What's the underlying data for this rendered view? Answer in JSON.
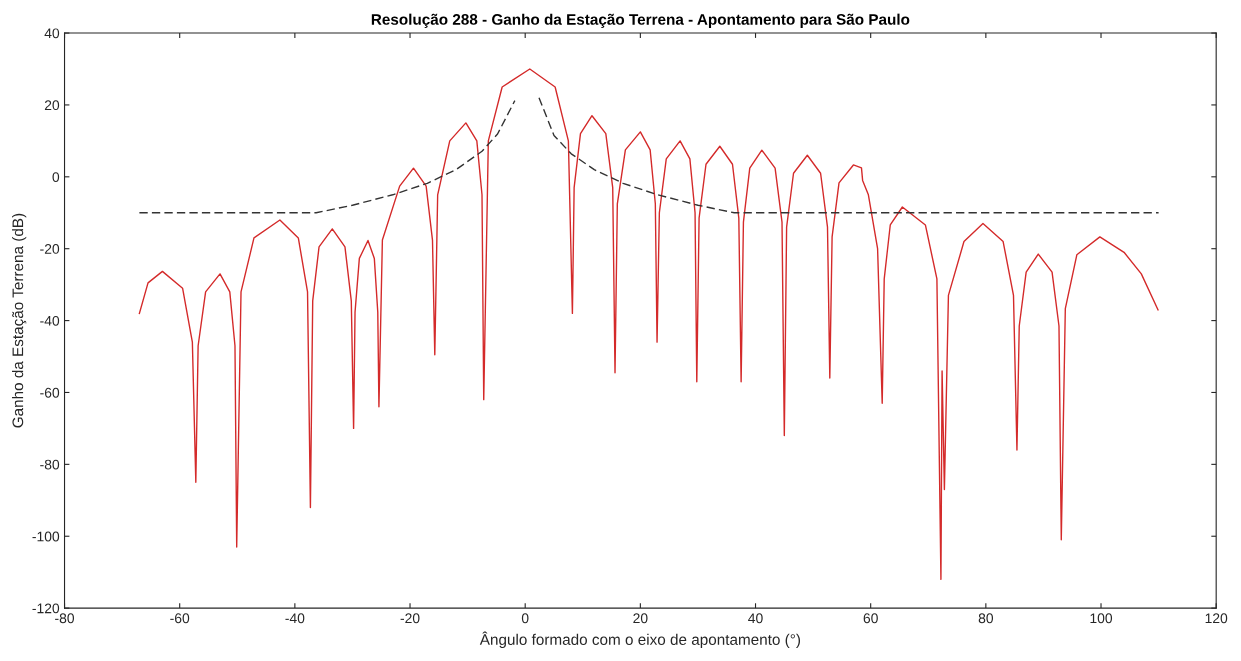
{
  "chart_data": {
    "type": "line",
    "title": "Resolução 288 - Ganho da Estação Terrena - Apontamento para São Paulo",
    "xlabel": "Ângulo formado com o eixo de apontamento (°)",
    "ylabel": "Ganho da Estação Terrena (dB)",
    "xlim": [
      -80,
      120
    ],
    "xticks": [
      -80,
      -60,
      -40,
      -20,
      0,
      20,
      40,
      60,
      80,
      100,
      120
    ],
    "ylim": [
      -120,
      40
    ],
    "yticks": [
      -120,
      -100,
      -80,
      -60,
      -40,
      -20,
      0,
      20,
      40
    ],
    "grid": false,
    "legend": false,
    "series": [
      {
        "color": "#d42a2a",
        "line_style": "solid",
        "x": [
          -67,
          -65.5,
          -63,
          -59.5,
          -57.8,
          -57.2,
          -56.8,
          -55.5,
          -53,
          -51.3,
          -50.4,
          -50.1,
          -49.35,
          -47.1,
          -42.6,
          -39.4,
          -37.8,
          -37.3,
          -36.9,
          -35.8,
          -33.5,
          -31.3,
          -30.2,
          -29.8,
          -29.55,
          -28.8,
          -27.3,
          -26.2,
          -25.6,
          -25.4,
          -24.8,
          -21.8,
          -19.4,
          -17.2,
          -16.1,
          -15.7,
          -15.2,
          -13.1,
          -10.3,
          -8.4,
          -7.5,
          -7.2,
          -6.4,
          -4,
          0.8,
          5.2,
          7.5,
          8.2,
          8.5,
          9.6,
          11.6,
          14,
          15.2,
          15.6,
          16.0,
          17.4,
          20,
          21.7,
          22.6,
          22.9,
          23.3,
          24.5,
          26.9,
          28.6,
          29.5,
          29.8,
          30.2,
          31.4,
          33.8,
          36,
          37.1,
          37.5,
          37.9,
          39.0,
          41.1,
          43.4,
          44.6,
          45,
          45.4,
          46.6,
          49,
          51.3,
          52.5,
          52.9,
          53.3,
          54.5,
          57,
          58.4,
          58.6,
          59.6,
          61.2,
          62,
          62.35,
          63.4,
          65.5,
          69.5,
          71.5,
          72.2,
          72.4,
          72.8,
          73.5,
          76.2,
          79.5,
          83.0,
          84.8,
          85.4,
          85.8,
          87.0,
          89.1,
          91.5,
          92.7,
          93.1,
          93.8,
          95.8,
          99.8,
          104,
          107,
          109.9
        ],
        "values": [
          -38,
          -29.5,
          -26.3,
          -31,
          -46,
          -85,
          -47,
          -32,
          -27,
          -32,
          -47,
          -103,
          -32,
          -17,
          -12,
          -17,
          -32,
          -92,
          -34.5,
          -19.5,
          -14.5,
          -19.5,
          -34.5,
          -70,
          -37.7,
          -22.7,
          -17.7,
          -22.7,
          -37.7,
          -64,
          -17.6,
          -2.6,
          2.4,
          -2.6,
          -17.6,
          -49.5,
          -5,
          10,
          15,
          10,
          -5,
          -62,
          10,
          25,
          30,
          25,
          10,
          -38,
          -3,
          12,
          17,
          12,
          -3,
          -54.5,
          -7.5,
          7.5,
          12.5,
          7.5,
          -7.5,
          -46,
          -10,
          5,
          10,
          5,
          -10,
          -57,
          -11.5,
          3.5,
          8.5,
          3.5,
          -11.5,
          -57,
          -12.6,
          2.4,
          7.4,
          2.4,
          -12.6,
          -72,
          -14,
          1,
          6,
          1,
          -14,
          -56,
          -16.7,
          -1.7,
          3.3,
          2.5,
          -1,
          -5,
          -20,
          -63,
          -28.4,
          -13.4,
          -8.4,
          -13.4,
          -28.4,
          -112,
          -54,
          -87,
          -33,
          -18,
          -13,
          -18,
          -33,
          -76,
          -41.5,
          -26.5,
          -21.5,
          -26.5,
          -41.5,
          -101,
          -36.7,
          -21.7,
          -16.7,
          -21,
          -27,
          -37
        ]
      },
      {
        "color": "#333333",
        "line_style": "dashed",
        "x": [
          -67,
          -36.3,
          -30,
          -23,
          -17,
          -12,
          -7.5,
          -4.8,
          -1.8,
          0,
          2.4,
          5,
          8,
          12,
          17,
          23,
          30,
          36.3,
          110
        ],
        "values": [
          -10,
          -10,
          -7.9,
          -5.0,
          -1.8,
          2.0,
          7.1,
          11.9,
          21.2,
          null,
          22,
          11.5,
          6.4,
          2.0,
          -1.8,
          -5.0,
          -7.9,
          -10,
          -10
        ]
      }
    ]
  }
}
